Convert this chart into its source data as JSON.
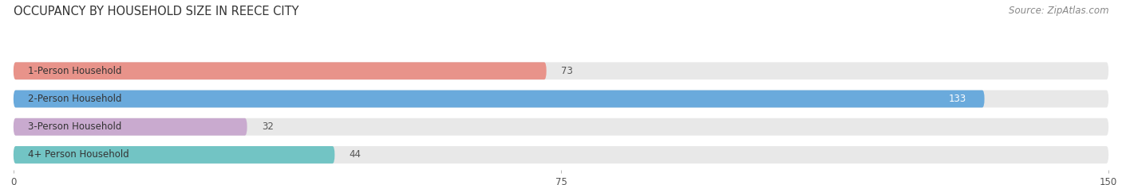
{
  "title": "OCCUPANCY BY HOUSEHOLD SIZE IN REECE CITY",
  "source": "Source: ZipAtlas.com",
  "categories": [
    "1-Person Household",
    "2-Person Household",
    "3-Person Household",
    "4+ Person Household"
  ],
  "values": [
    73,
    133,
    32,
    44
  ],
  "bar_colors": [
    "#e8938a",
    "#6aaadc",
    "#c9aacf",
    "#72c4c4"
  ],
  "bar_bg_color": "#e8e8e8",
  "xlim": [
    0,
    150
  ],
  "xticks": [
    0,
    75,
    150
  ],
  "title_fontsize": 10.5,
  "label_fontsize": 8.5,
  "value_fontsize": 8.5,
  "tick_fontsize": 8.5,
  "source_fontsize": 8.5,
  "background_color": "#ffffff",
  "bar_area_bg": "#f2f2f2"
}
